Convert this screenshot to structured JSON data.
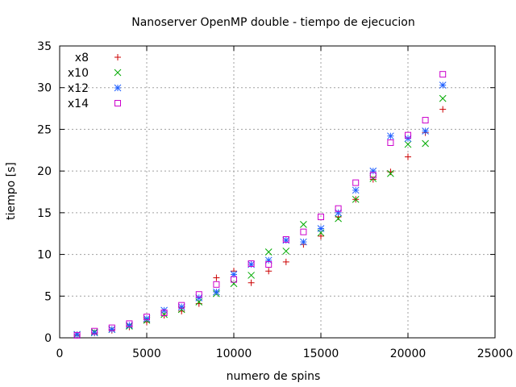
{
  "chart_data": {
    "type": "scatter",
    "title": "Nanoserver OpenMP double - tiempo de ejecucion",
    "xlabel": "numero de spins",
    "ylabel": "tiempo [s]",
    "xlim": [
      0,
      25000
    ],
    "ylim": [
      0,
      35
    ],
    "xticks": [
      0,
      5000,
      10000,
      15000,
      20000,
      25000
    ],
    "yticks": [
      0,
      5,
      10,
      15,
      20,
      25,
      30,
      35
    ],
    "grid": true,
    "legend_position": "top-left",
    "x": [
      1000,
      2000,
      3000,
      4000,
      5000,
      6000,
      7000,
      8000,
      9000,
      10000,
      11000,
      12000,
      13000,
      14000,
      15000,
      16000,
      17000,
      18000,
      19000,
      20000,
      21000,
      22000
    ],
    "series": [
      {
        "name": "x8",
        "marker": "plus",
        "color": "#cc0000",
        "values": [
          0.3,
          0.6,
          0.9,
          1.3,
          1.9,
          2.7,
          3.2,
          4.1,
          7.2,
          8.0,
          6.6,
          8.0,
          9.1,
          11.2,
          12.2,
          14.5,
          16.6,
          19.0,
          19.9,
          21.7,
          24.6,
          27.4
        ]
      },
      {
        "name": "x10",
        "marker": "cross",
        "color": "#00aa00",
        "values": [
          0.4,
          0.7,
          1.0,
          1.4,
          2.1,
          2.8,
          3.4,
          4.3,
          5.3,
          6.5,
          7.5,
          10.3,
          10.4,
          13.6,
          12.6,
          14.3,
          16.6,
          19.1,
          19.7,
          23.2,
          23.3,
          28.7
        ]
      },
      {
        "name": "x12",
        "marker": "asterisk",
        "color": "#2060ff",
        "values": [
          0.4,
          0.6,
          1.0,
          1.5,
          2.3,
          3.3,
          3.7,
          4.8,
          5.5,
          7.6,
          8.8,
          9.3,
          11.7,
          11.5,
          13.1,
          15.0,
          17.7,
          20.0,
          24.2,
          23.9,
          24.8,
          30.3
        ]
      },
      {
        "name": "x14",
        "marker": "square",
        "color": "#cc00cc",
        "values": [
          0.3,
          0.8,
          1.2,
          1.7,
          2.5,
          3.0,
          3.9,
          5.2,
          6.4,
          7.0,
          8.9,
          8.8,
          11.8,
          12.7,
          14.5,
          15.5,
          18.6,
          19.5,
          23.4,
          24.3,
          26.1,
          31.6
        ]
      }
    ]
  }
}
